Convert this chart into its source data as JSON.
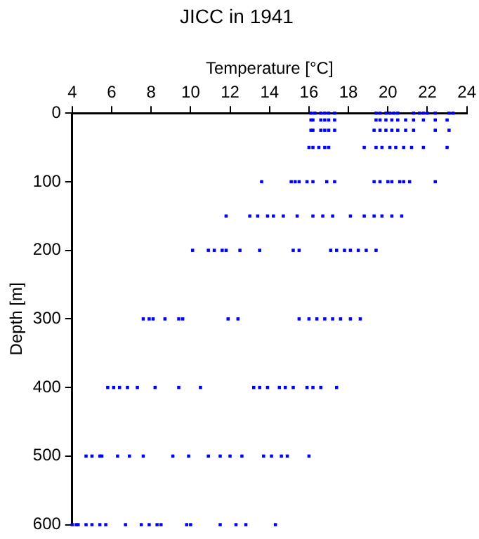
{
  "chart_data": {
    "type": "scatter",
    "title": "JICC in 1941",
    "xlabel": "Temperature [°C]",
    "ylabel": "Depth [m]",
    "xlim": [
      4,
      24
    ],
    "xticks": [
      4,
      6,
      8,
      10,
      12,
      14,
      16,
      18,
      20,
      22,
      24
    ],
    "ylim": [
      600,
      0
    ],
    "yticks": [
      0,
      100,
      200,
      300,
      400,
      500,
      600
    ],
    "grid": false,
    "legend": false,
    "marker": "square",
    "series": [
      {
        "color": "#0000ff",
        "x": [
          16.1,
          16.3,
          16.6,
          16.8,
          17.0,
          17.3,
          19.4,
          19.6,
          19.9,
          20.1,
          20.3,
          20.5,
          21.3,
          21.6,
          21.8,
          22.0,
          22.4,
          23.1,
          23.3,
          16.1,
          16.2,
          16.6,
          16.8,
          17.0,
          17.3,
          19.4,
          19.6,
          19.9,
          20.2,
          20.5,
          20.9,
          21.3,
          21.8,
          22.4,
          23.0,
          16.1,
          16.2,
          16.6,
          16.8,
          17.0,
          17.3,
          19.3,
          19.6,
          19.9,
          20.2,
          20.5,
          20.9,
          21.3,
          22.4,
          23.1,
          16.0,
          16.2,
          16.5,
          16.8,
          17.0,
          18.8,
          19.4,
          19.7,
          20.1,
          20.4,
          20.8,
          21.2,
          21.8,
          23.0,
          13.6,
          15.1,
          15.3,
          15.5,
          15.9,
          16.2,
          16.9,
          17.3,
          19.3,
          19.6,
          20.0,
          20.2,
          20.6,
          20.8,
          21.1,
          22.4,
          11.8,
          13.0,
          13.4,
          13.9,
          14.2,
          14.7,
          15.4,
          16.2,
          16.7,
          17.2,
          18.1,
          18.8,
          19.3,
          19.7,
          20.2,
          20.7,
          10.1,
          10.9,
          11.2,
          11.6,
          11.8,
          12.5,
          13.5,
          15.2,
          15.5,
          17.1,
          17.4,
          17.8,
          18.1,
          18.5,
          18.9,
          19.4,
          7.6,
          7.9,
          8.1,
          8.7,
          9.4,
          9.6,
          11.9,
          12.4,
          15.5,
          16.0,
          16.4,
          16.8,
          17.2,
          17.6,
          18.1,
          18.6,
          5.8,
          6.1,
          6.4,
          6.8,
          7.3,
          8.2,
          9.4,
          10.5,
          13.2,
          13.5,
          13.9,
          14.5,
          14.8,
          15.2,
          15.9,
          16.2,
          16.6,
          17.4,
          4.7,
          5.0,
          5.4,
          5.5,
          6.3,
          6.9,
          7.6,
          9.1,
          9.9,
          10.9,
          11.5,
          12.0,
          12.6,
          13.7,
          14.1,
          14.6,
          14.9,
          16.0,
          4.0,
          4.2,
          4.3,
          4.7,
          5.0,
          5.4,
          5.7,
          6.7,
          7.5,
          7.9,
          8.3,
          8.5,
          9.8,
          10.0,
          11.5,
          12.3,
          12.8,
          14.3
        ],
        "values": [
          0,
          0,
          0,
          0,
          0,
          0,
          0,
          0,
          0,
          0,
          0,
          0,
          0,
          0,
          0,
          0,
          0,
          0,
          0,
          10,
          10,
          10,
          10,
          10,
          10,
          10,
          10,
          10,
          10,
          10,
          10,
          10,
          10,
          10,
          10,
          25,
          25,
          25,
          25,
          25,
          25,
          25,
          25,
          25,
          25,
          25,
          25,
          25,
          25,
          25,
          50,
          50,
          50,
          50,
          50,
          50,
          50,
          50,
          50,
          50,
          50,
          50,
          50,
          50,
          100,
          100,
          100,
          100,
          100,
          100,
          100,
          100,
          100,
          100,
          100,
          100,
          100,
          100,
          100,
          100,
          150,
          150,
          150,
          150,
          150,
          150,
          150,
          150,
          150,
          150,
          150,
          150,
          150,
          150,
          150,
          150,
          200,
          200,
          200,
          200,
          200,
          200,
          200,
          200,
          200,
          200,
          200,
          200,
          200,
          200,
          200,
          200,
          300,
          300,
          300,
          300,
          300,
          300,
          300,
          300,
          300,
          300,
          300,
          300,
          300,
          300,
          300,
          300,
          400,
          400,
          400,
          400,
          400,
          400,
          400,
          400,
          400,
          400,
          400,
          400,
          400,
          400,
          400,
          400,
          400,
          400,
          500,
          500,
          500,
          500,
          500,
          500,
          500,
          500,
          500,
          500,
          500,
          500,
          500,
          500,
          500,
          500,
          500,
          500,
          600,
          600,
          600,
          600,
          600,
          600,
          600,
          600,
          600,
          600,
          600,
          600,
          600,
          600,
          600,
          600,
          600,
          600
        ]
      }
    ]
  }
}
